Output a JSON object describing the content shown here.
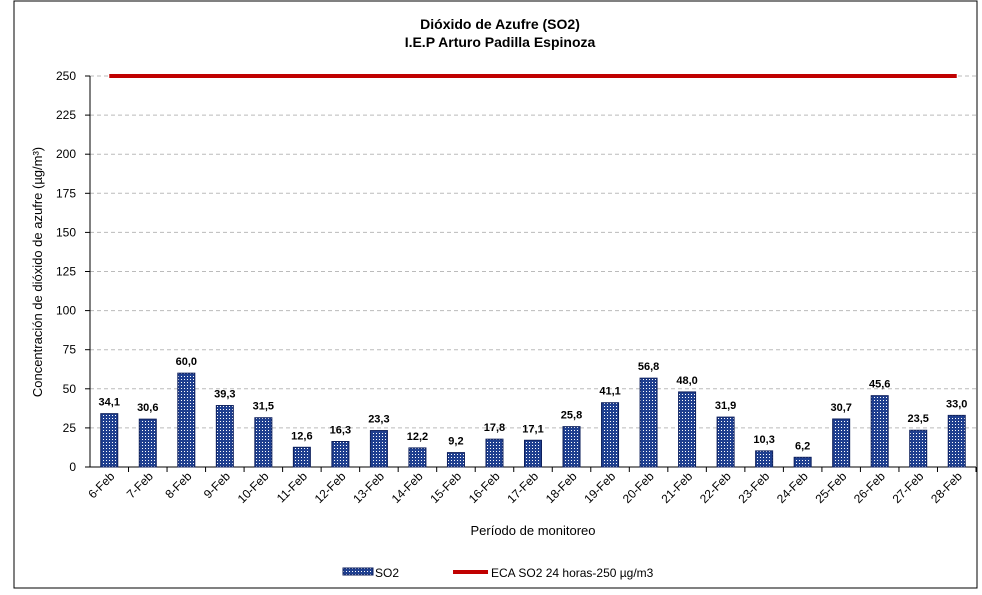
{
  "chart_data": {
    "type": "bar",
    "title": "Dióxido de Azufre (SO2)",
    "subtitle": "I.E.P Arturo Padilla Espinoza",
    "x_label": "Período de monitoreo",
    "y_label": "Concentración de dióxido de azufre (µg/m³)",
    "categories": [
      "6-Feb",
      "7-Feb",
      "8-Feb",
      "9-Feb",
      "10-Feb",
      "11-Feb",
      "12-Feb",
      "13-Feb",
      "14-Feb",
      "15-Feb",
      "16-Feb",
      "17-Feb",
      "18-Feb",
      "19-Feb",
      "20-Feb",
      "21-Feb",
      "22-Feb",
      "23-Feb",
      "24-Feb",
      "25-Feb",
      "26-Feb",
      "27-Feb",
      "28-Feb"
    ],
    "series": [
      {
        "name": "SO2",
        "type": "bar",
        "color": "#1f3f8f",
        "values": [
          34.1,
          30.6,
          60.0,
          39.3,
          31.5,
          12.6,
          16.3,
          23.3,
          12.2,
          9.2,
          17.8,
          17.1,
          25.8,
          41.1,
          56.8,
          48.0,
          31.9,
          10.3,
          6.2,
          30.7,
          45.6,
          23.5,
          33.0
        ],
        "value_labels": [
          "34,1",
          "30,6",
          "60,0",
          "39,3",
          "31,5",
          "12,6",
          "16,3",
          "23,3",
          "12,2",
          "9,2",
          "17,8",
          "17,1",
          "25,8",
          "41,1",
          "56,8",
          "48,0",
          "31,9",
          "10,3",
          "6,2",
          "30,7",
          "45,6",
          "23,5",
          "33,0"
        ]
      },
      {
        "name": "ECA SO2 24 horas-250 µg/m3",
        "type": "line",
        "color": "#c00000",
        "values": [
          250,
          250,
          250,
          250,
          250,
          250,
          250,
          250,
          250,
          250,
          250,
          250,
          250,
          250,
          250,
          250,
          250,
          250,
          250,
          250,
          250,
          250,
          250
        ]
      }
    ],
    "ylim": [
      0,
      250
    ],
    "yticks": [
      0,
      25,
      50,
      75,
      100,
      125,
      150,
      175,
      200,
      225,
      250
    ],
    "grid": true,
    "legend": "bottom"
  }
}
